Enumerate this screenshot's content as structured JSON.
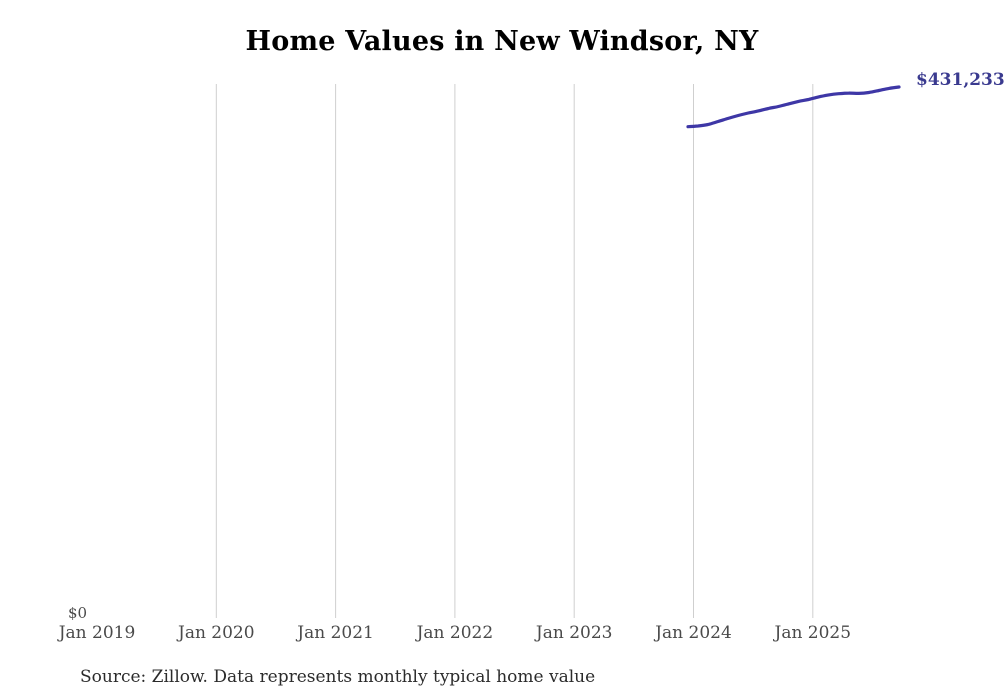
{
  "title": "Home Values in New Windsor, NY",
  "source_note": "Source: Zillow. Data represents monthly typical home value",
  "colors": {
    "line": "#3e37a6",
    "end_label": "#3a3a8f",
    "gridline": "#cfcfcf",
    "axis_label": "#4a4a4a",
    "title": "#000000",
    "source": "#2b2b2b"
  },
  "chart_data": {
    "type": "line",
    "title": "Home Values in New Windsor, NY",
    "series_name": "Monthly typical home value (USD)",
    "x": [
      "Dec 2023",
      "Jan 2024",
      "Feb 2024",
      "Mar 2024",
      "Apr 2024",
      "May 2024",
      "Jun 2024",
      "Jul 2024",
      "Aug 2024",
      "Sep 2024",
      "Oct 2024",
      "Nov 2024",
      "Dec 2024",
      "Jan 2025",
      "Feb 2025",
      "Mar 2025",
      "Apr 2025",
      "May 2025",
      "Jun 2025",
      "Jul 2025",
      "Aug 2025",
      "Sep 2025"
    ],
    "values": [
      399000,
      399600,
      400800,
      403200,
      405700,
      408100,
      410100,
      411800,
      413800,
      415400,
      417500,
      419500,
      421100,
      423200,
      424800,
      425800,
      426300,
      426000,
      426800,
      428400,
      430100,
      431233
    ],
    "x_tick_labels": [
      "Jan 2019",
      "Jan 2020",
      "Jan 2021",
      "Jan 2022",
      "Jan 2023",
      "Jan 2024",
      "Jan 2025"
    ],
    "y_zero_label": "$0",
    "end_label": "$431,233",
    "ylim": [
      0,
      434000
    ],
    "grid": "vertical-only",
    "legend": "none"
  }
}
